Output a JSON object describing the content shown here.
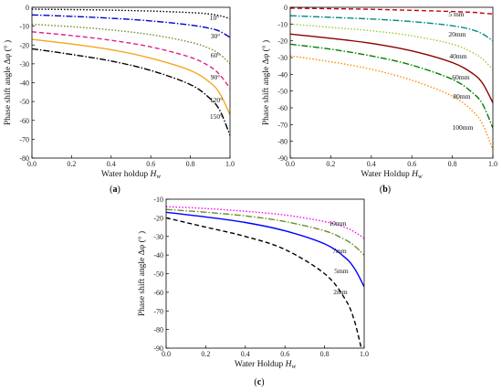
{
  "chart_data": [
    {
      "type": "line",
      "panel": "(a)",
      "xlabel": "Water holdup",
      "xlabel_sub": "w",
      "ylabel": "Phase shift angle Δφ (° )",
      "xlim": [
        0,
        1
      ],
      "ylim": [
        -80,
        0
      ],
      "xticks": [
        "0.0",
        "0.2",
        "0.4",
        "0.6",
        "0.8",
        "1.0"
      ],
      "yticks": [
        "0",
        "-10",
        "-20",
        "-30",
        "-40",
        "-50",
        "-60",
        "-70",
        "-80"
      ],
      "series": [
        {
          "name": "10°",
          "color": "#000000",
          "dash": "1.5,2",
          "x": [
            0,
            0.2,
            0.4,
            0.6,
            0.8,
            0.9,
            0.95,
            1.0
          ],
          "y": [
            -1,
            -1.2,
            -1.5,
            -2,
            -2.8,
            -3.6,
            -4.5,
            -6
          ]
        },
        {
          "name": "30°",
          "color": "#0000cc",
          "dash": "7,2,1.5,2",
          "x": [
            0,
            0.2,
            0.4,
            0.6,
            0.8,
            0.9,
            0.95,
            1.0
          ],
          "y": [
            -4,
            -4.8,
            -5.8,
            -7.2,
            -9.4,
            -11.2,
            -12.8,
            -16
          ]
        },
        {
          "name": "60°",
          "color": "#6b8e23",
          "dash": "1.5,2",
          "x": [
            0,
            0.2,
            0.4,
            0.6,
            0.8,
            0.9,
            0.95,
            1.0
          ],
          "y": [
            -9,
            -10.3,
            -12,
            -14.5,
            -18.5,
            -22,
            -25,
            -30
          ]
        },
        {
          "name": "90°",
          "color": "#e0218a",
          "dash": "5,3",
          "x": [
            0,
            0.2,
            0.4,
            0.6,
            0.8,
            0.9,
            0.95,
            1.0
          ],
          "y": [
            -13,
            -15,
            -17.5,
            -21,
            -26.5,
            -31.5,
            -36,
            -43
          ]
        },
        {
          "name": "120°",
          "color": "#f5a623",
          "dash": "",
          "x": [
            0,
            0.2,
            0.4,
            0.6,
            0.8,
            0.9,
            0.95,
            1.0
          ],
          "y": [
            -17,
            -19.5,
            -22.5,
            -27,
            -33.5,
            -40,
            -46,
            -57
          ]
        },
        {
          "name": "150°",
          "color": "#000000",
          "dash": "7,2,1.5,2",
          "x": [
            0,
            0.2,
            0.4,
            0.6,
            0.8,
            0.9,
            0.95,
            1.0
          ],
          "y": [
            -22,
            -25,
            -28.5,
            -33.5,
            -41,
            -48.5,
            -55,
            -68
          ]
        }
      ]
    },
    {
      "type": "line",
      "panel": "(b)",
      "xlabel": "Water Holdup",
      "xlabel_sub": "w",
      "ylabel": "Phase shift angle Δφ (° )",
      "xlim": [
        0,
        1
      ],
      "ylim": [
        -90,
        0
      ],
      "xticks": [
        "0.0",
        "0.2",
        "0.4",
        "0.6",
        "0.8",
        "1.0"
      ],
      "yticks": [
        "0",
        "-10",
        "-20",
        "-30",
        "-40",
        "-50",
        "-60",
        "-70",
        "-80",
        "-90"
      ],
      "series": [
        {
          "name": "5 mm",
          "color": "#cc0000",
          "dash": "5,3",
          "x": [
            0,
            0.2,
            0.4,
            0.6,
            0.8,
            0.9,
            0.95,
            1.0
          ],
          "y": [
            -0.5,
            -0.8,
            -1.2,
            -1.8,
            -2.5,
            -3,
            -3.5,
            -4
          ]
        },
        {
          "name": "20mm",
          "color": "#008b8b",
          "dash": "7,2,1.5,2",
          "x": [
            0,
            0.2,
            0.4,
            0.6,
            0.8,
            0.9,
            0.95,
            1.0
          ],
          "y": [
            -5,
            -6,
            -7,
            -8.5,
            -11,
            -13.5,
            -16,
            -20
          ]
        },
        {
          "name": "40mm",
          "color": "#9acd32",
          "dash": "1.5,2",
          "x": [
            0,
            0.2,
            0.4,
            0.6,
            0.8,
            0.9,
            0.95,
            1.0
          ],
          "y": [
            -10,
            -12,
            -14,
            -17,
            -22,
            -27,
            -31,
            -37
          ]
        },
        {
          "name": "60mm",
          "color": "#8b0000",
          "dash": "",
          "x": [
            0,
            0.2,
            0.4,
            0.6,
            0.8,
            0.9,
            0.95,
            1.0
          ],
          "y": [
            -16,
            -18.5,
            -21.5,
            -26,
            -33,
            -39.5,
            -45.5,
            -57
          ]
        },
        {
          "name": "80mm",
          "color": "#008000",
          "dash": "7,2,1.5,2",
          "x": [
            0,
            0.2,
            0.4,
            0.6,
            0.8,
            0.9,
            0.95,
            1.0
          ],
          "y": [
            -22,
            -25,
            -29,
            -34.5,
            -43,
            -51,
            -58,
            -72
          ]
        },
        {
          "name": "100mm",
          "color": "#ff8c00",
          "dash": "1.5,2",
          "x": [
            0,
            0.2,
            0.4,
            0.6,
            0.8,
            0.9,
            0.95,
            1.0
          ],
          "y": [
            -29,
            -32.5,
            -37,
            -43.5,
            -53,
            -62,
            -70,
            -85
          ]
        }
      ]
    },
    {
      "type": "line",
      "panel": "(c)",
      "xlabel": "Water Holdup",
      "xlabel_sub": "w",
      "ylabel": "Phase shift angle Δφ (° )",
      "xlim": [
        0,
        1
      ],
      "ylim": [
        -90,
        -10
      ],
      "xticks": [
        "0.0",
        "0.2",
        "0.4",
        "0.6",
        "0.8",
        "1.0"
      ],
      "yticks": [
        "-10",
        "-20",
        "-30",
        "-40",
        "-50",
        "-60",
        "-70",
        "-80",
        "-90"
      ],
      "series": [
        {
          "name": "10mm",
          "color": "#ff00ff",
          "dash": "1.5,2",
          "x": [
            0,
            0.2,
            0.4,
            0.6,
            0.8,
            0.9,
            0.95,
            1.0
          ],
          "y": [
            -14,
            -15,
            -16.5,
            -18.5,
            -22,
            -25,
            -27.5,
            -31
          ]
        },
        {
          "name": "7mm",
          "color": "#6b8e23",
          "dash": "7,2,1.5,2",
          "x": [
            0,
            0.2,
            0.4,
            0.6,
            0.8,
            0.9,
            0.95,
            1.0
          ],
          "y": [
            -15.5,
            -17,
            -19,
            -22,
            -27,
            -31.5,
            -35,
            -40
          ]
        },
        {
          "name": "5mm",
          "color": "#0000ff",
          "dash": "",
          "x": [
            0,
            0.2,
            0.4,
            0.6,
            0.8,
            0.9,
            0.95,
            1.0
          ],
          "y": [
            -17,
            -19.5,
            -22.5,
            -27,
            -34,
            -41,
            -47,
            -57
          ]
        },
        {
          "name": "2mm",
          "color": "#000000",
          "dash": "5,3",
          "x": [
            0,
            0.2,
            0.4,
            0.6,
            0.8,
            0.9,
            0.95,
            1.0
          ],
          "y": [
            -20,
            -25,
            -30,
            -37,
            -50,
            -63,
            -75,
            -97
          ]
        }
      ]
    }
  ]
}
